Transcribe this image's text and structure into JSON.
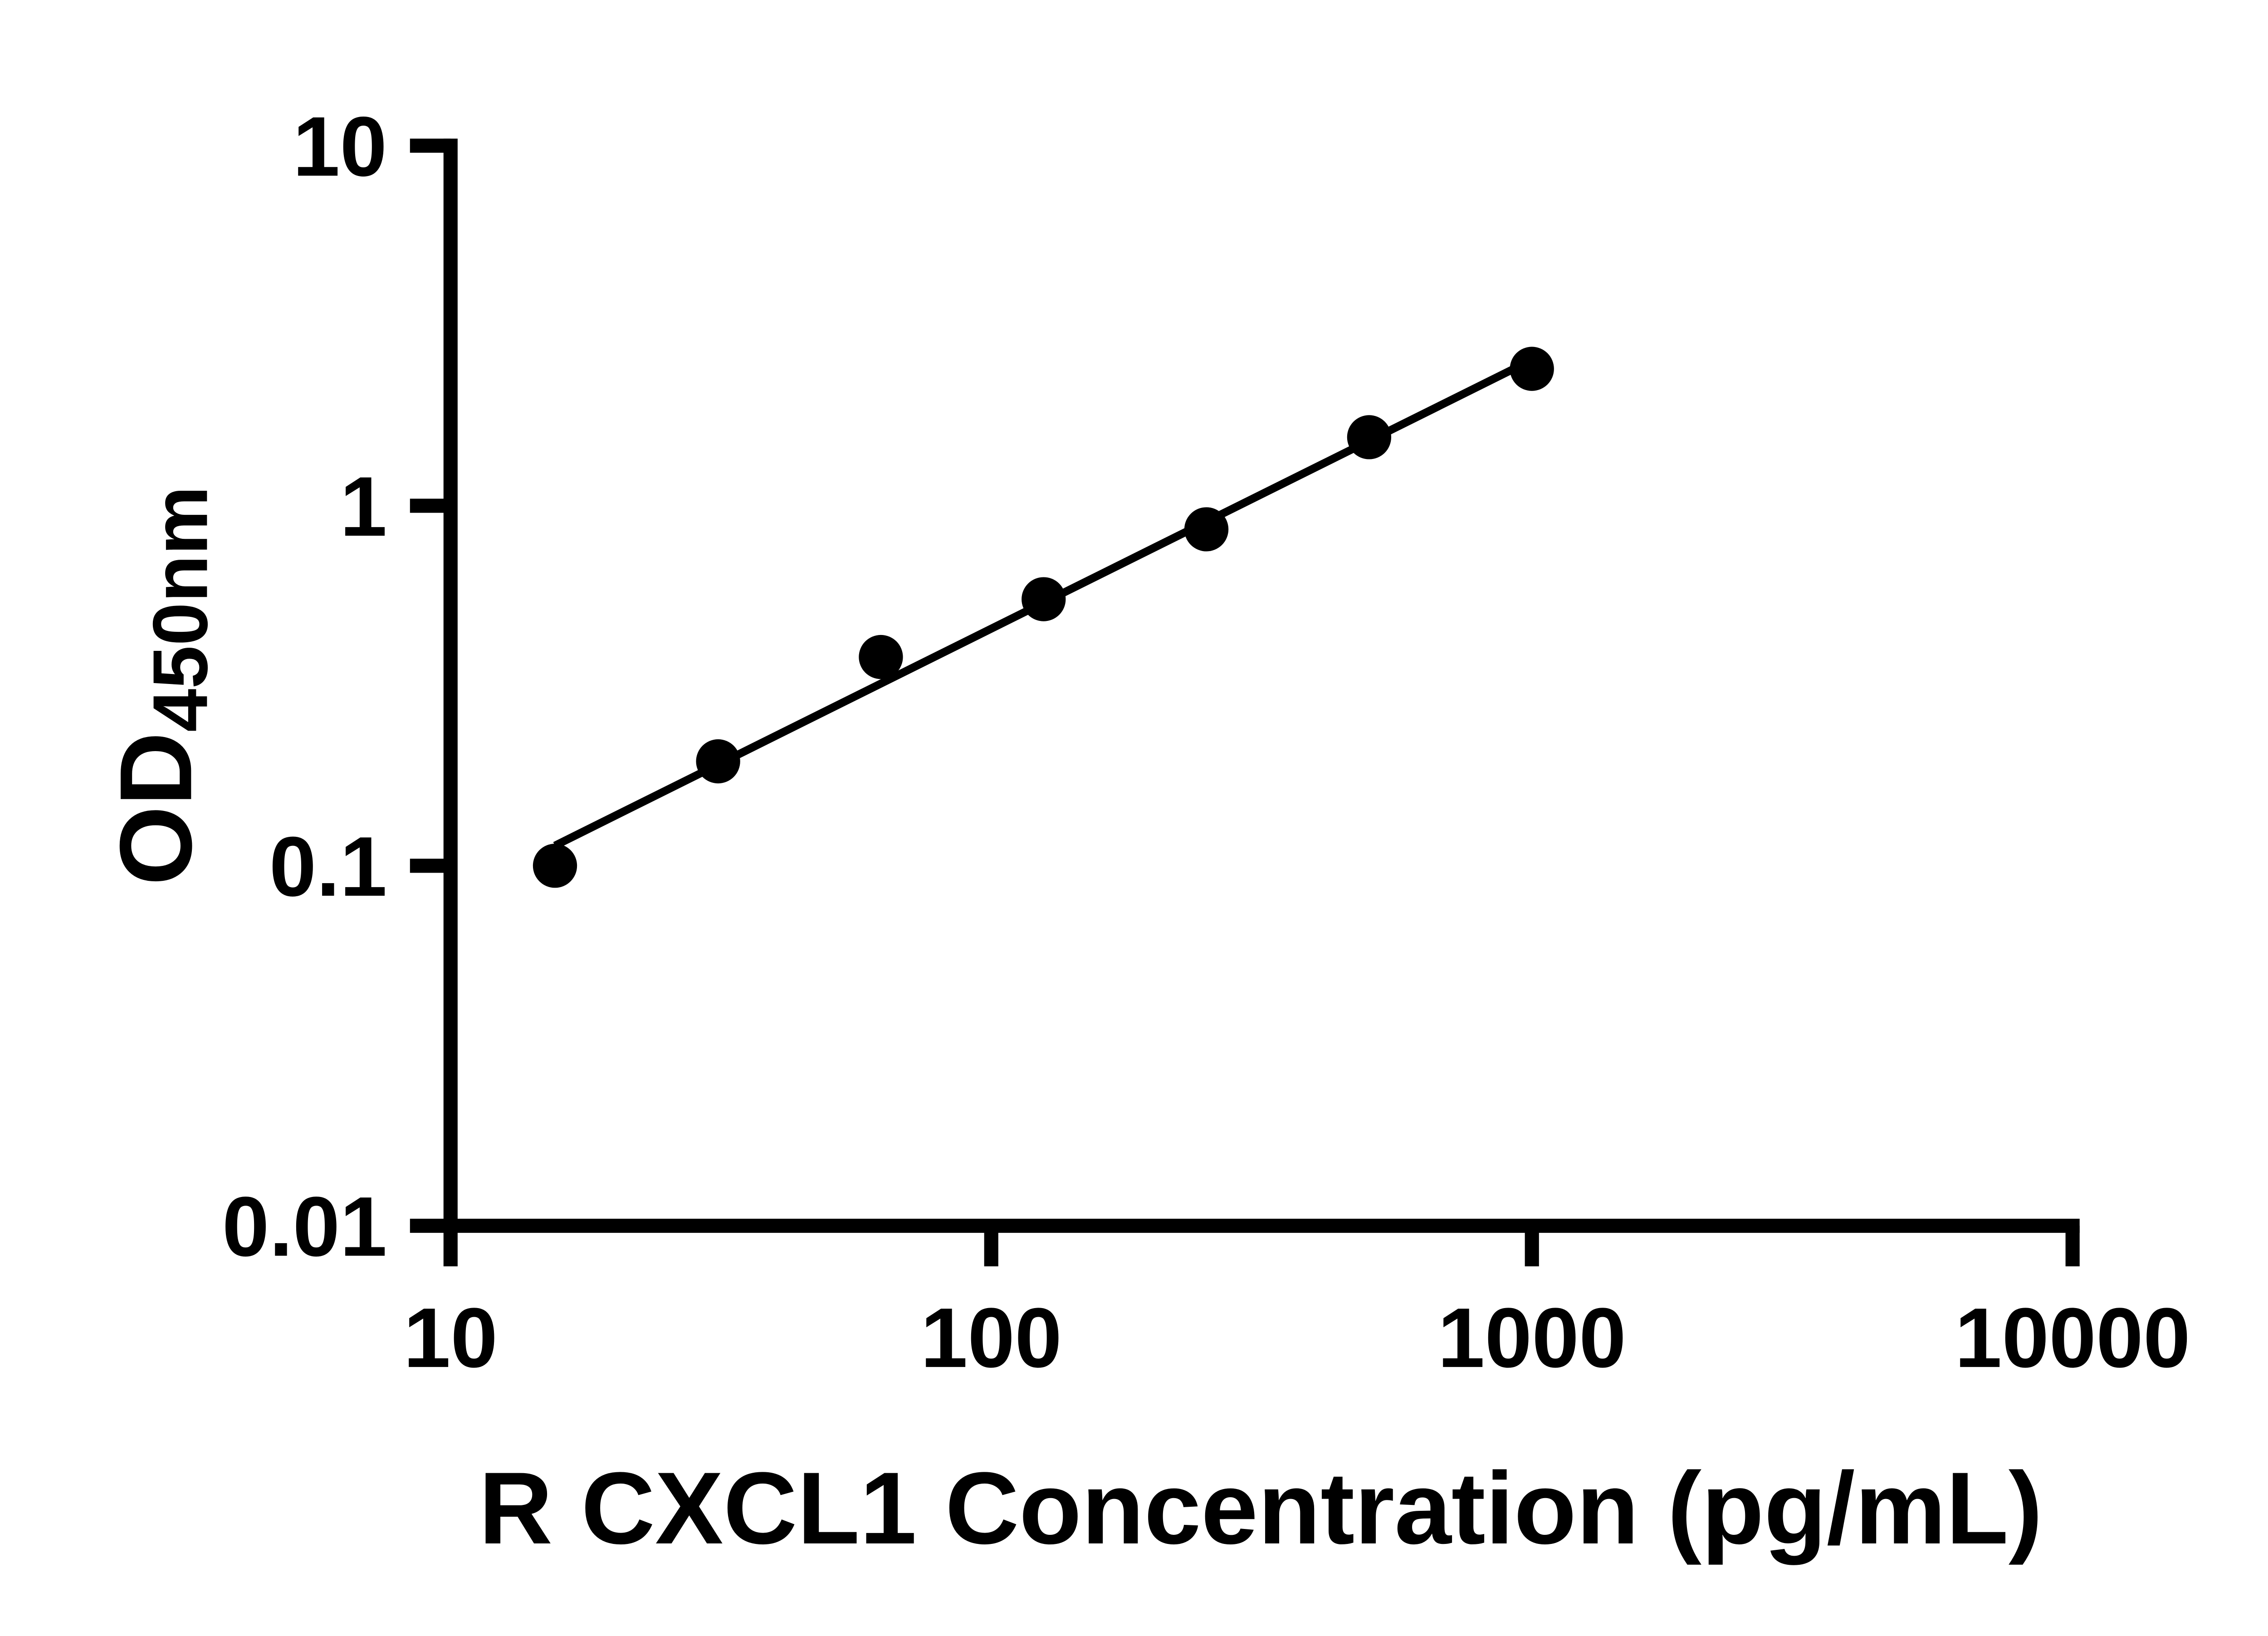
{
  "chart_data": {
    "type": "scatter",
    "x": [
      15.6,
      31.25,
      62.5,
      125,
      250,
      500,
      1000
    ],
    "y": [
      0.1,
      0.195,
      0.38,
      0.55,
      0.86,
      1.55,
      2.4
    ],
    "title": "",
    "xlabel": "R CXCL1 Concentration (pg/mL)",
    "ylabel_main": "OD",
    "ylabel_sub": "450nm",
    "x_scale": "log10",
    "y_scale": "log10",
    "xlim": [
      10,
      10000
    ],
    "ylim": [
      0.01,
      10
    ],
    "x_ticks": [
      10,
      100,
      1000,
      10000
    ],
    "x_tick_labels": [
      "10",
      "100",
      "1000",
      "10000"
    ],
    "y_ticks": [
      0.01,
      0.1,
      1,
      10
    ],
    "y_tick_labels": [
      "0.01",
      "0.1",
      "1",
      "10"
    ],
    "grid": false,
    "legend": false,
    "trend_line": true,
    "marker": "circle",
    "marker_color": "#000000",
    "line_color": "#000000",
    "axis_color": "#000000",
    "background_color": "#ffffff"
  }
}
